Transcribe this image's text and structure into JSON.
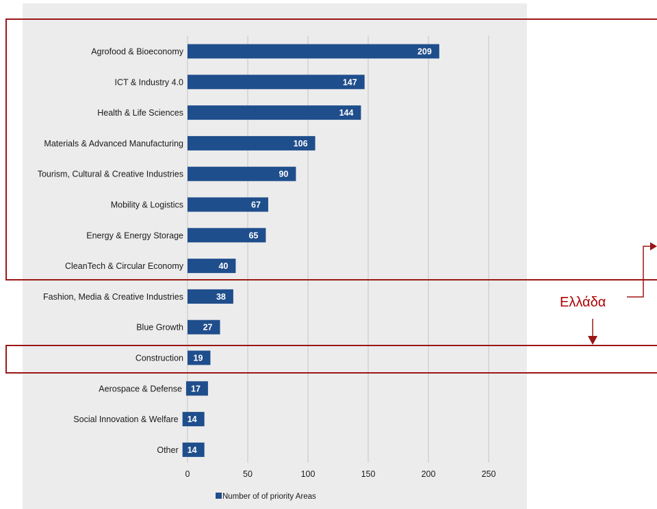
{
  "colors": {
    "bar": "#1f4e8c",
    "plot_bg": "#ececec",
    "grid": "#c4c4c4",
    "highlight": "#9b1515",
    "annotation": "#b00000"
  },
  "chart_data": {
    "type": "bar",
    "orientation": "horizontal",
    "categories": [
      "Agrofood & Bioeconomy",
      "ICT & Industry 4.0",
      "Health & Life Sciences",
      "Materials & Advanced Manufacturing",
      "Tourism, Cultural & Creative Industries",
      "Mobility & Logistics",
      "Energy & Energy Storage",
      "CleanTech & Circular Economy",
      "Fashion, Media & Creative Industries",
      "Blue Growth",
      "Construction",
      "Aerospace & Defense",
      "Social Innovation & Welfare",
      "Other"
    ],
    "series": [
      {
        "name": "Number of of priority Areas",
        "values": [
          209,
          147,
          144,
          106,
          90,
          67,
          65,
          40,
          38,
          27,
          19,
          17,
          14,
          14
        ]
      }
    ],
    "xlim": [
      0,
      250
    ],
    "xticks": [
      "0",
      "50",
      "100",
      "150",
      "200",
      "250"
    ],
    "grid": true,
    "legend": "bottom",
    "data_labels": true
  },
  "annotation": {
    "label": "Ελλάδα",
    "highlighted_groups": [
      [
        "Agrofood & Bioeconomy",
        "ICT & Industry 4.0",
        "Health & Life Sciences",
        "Materials & Advanced Manufacturing",
        "Tourism, Cultural & Creative Industries",
        "Mobility & Logistics",
        "Energy & Energy Storage",
        "CleanTech & Circular Economy"
      ],
      [
        "Construction"
      ]
    ]
  }
}
